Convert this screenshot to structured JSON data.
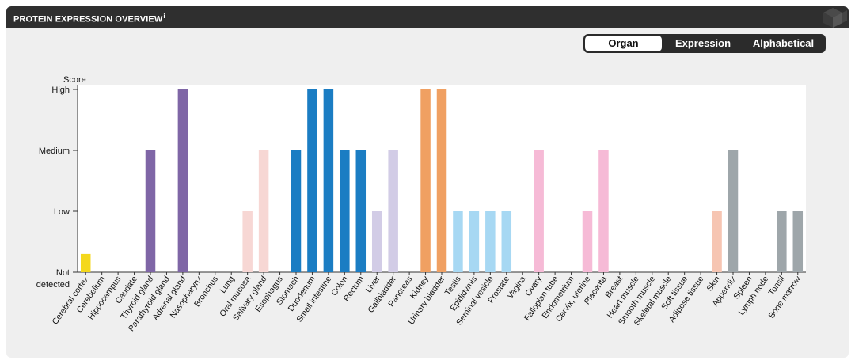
{
  "header": {
    "title": "PROTEIN EXPRESSION OVERVIEW",
    "info_mark": "i"
  },
  "sort_toggle": {
    "options": [
      "Organ",
      "Expression",
      "Alphabetical"
    ],
    "active": "Organ"
  },
  "chart_data": {
    "type": "bar",
    "ylabel": "Score",
    "y_levels": [
      "Not detected",
      "Low",
      "Medium",
      "High"
    ],
    "y_tick_labels": [
      "High",
      "Medium",
      "Low",
      "Not",
      "detected"
    ],
    "ylim": [
      0,
      3
    ],
    "grid": false,
    "categories": [
      "Cerebral cortex",
      "Cerebellum",
      "Hippocampus",
      "Caudate",
      "Thyroid gland",
      "Parathyroid gland",
      "Adrenal gland",
      "Nasopharynx",
      "Bronchus",
      "Lung",
      "Oral mucosa",
      "Salivary gland",
      "Esophagus",
      "Stomach",
      "Duodenum",
      "Small intestine",
      "Colon",
      "Rectum",
      "Liver",
      "Gallbladder",
      "Pancreas",
      "Kidney",
      "Urinary bladder",
      "Testis",
      "Epididymis",
      "Seminal vesicle",
      "Prostate",
      "Vagina",
      "Ovary",
      "Fallopian tube",
      "Endometrium",
      "Cervix, uterine",
      "Placenta",
      "Breast",
      "Heart muscle",
      "Smooth muscle",
      "Skeletal muscle",
      "Soft tissue",
      "Adipose tissue",
      "Skin",
      "Appendix",
      "Spleen",
      "Lymph node",
      "Tonsil",
      "Bone marrow"
    ],
    "values": [
      0.3,
      0,
      0,
      0,
      2,
      0,
      3,
      0,
      0,
      0,
      1,
      2,
      0,
      2,
      3,
      3,
      2,
      2,
      1,
      2,
      0,
      3,
      3,
      1,
      1,
      1,
      1,
      0,
      2,
      0,
      0,
      1,
      2,
      0,
      0,
      0,
      0,
      0,
      0,
      1,
      2,
      0,
      0,
      1,
      1
    ],
    "colors": [
      "#f4d81c",
      "#f4d81c",
      "#f4d81c",
      "#f4d81c",
      "#7f66a6",
      "#7f66a6",
      "#7f66a6",
      "#f7d7d4",
      "#f7d7d4",
      "#f7d7d4",
      "#f7d7d4",
      "#f7d7d4",
      "#1b7dc3",
      "#1b7dc3",
      "#1b7dc3",
      "#1b7dc3",
      "#1b7dc3",
      "#1b7dc3",
      "#d2cce6",
      "#d2cce6",
      "#d2cce6",
      "#f0a062",
      "#f0a062",
      "#a7d8f3",
      "#a7d8f3",
      "#a7d8f3",
      "#a7d8f3",
      "#f6bad6",
      "#f6bad6",
      "#f6bad6",
      "#f6bad6",
      "#f6bad6",
      "#f6bad6",
      "#f6bad6",
      "#f6c5b2",
      "#f6c5b2",
      "#f6c5b2",
      "#f6c5b2",
      "#f6c5b2",
      "#f6c5b2",
      "#9ea6aa",
      "#9ea6aa",
      "#9ea6aa",
      "#9ea6aa",
      "#9ea6aa"
    ]
  }
}
